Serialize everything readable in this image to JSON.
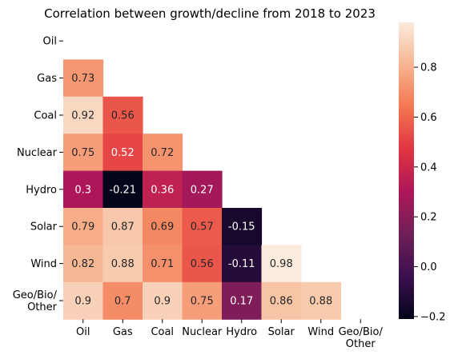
{
  "chart_data": {
    "type": "heatmap",
    "title": "Correlation between growth/decline from 2018 to 2023",
    "xlabel": "",
    "ylabel": "",
    "categories": [
      "Oil",
      "Gas",
      "Coal",
      "Nuclear",
      "Hydro",
      "Solar",
      "Wind",
      "Geo/Bio/\nOther"
    ],
    "mask": "upper-triangle-and-diagonal",
    "values": [
      [
        null,
        null,
        null,
        null,
        null,
        null,
        null,
        null
      ],
      [
        0.73,
        null,
        null,
        null,
        null,
        null,
        null,
        null
      ],
      [
        0.92,
        0.56,
        null,
        null,
        null,
        null,
        null,
        null
      ],
      [
        0.75,
        0.52,
        0.72,
        null,
        null,
        null,
        null,
        null
      ],
      [
        0.3,
        -0.21,
        0.36,
        0.27,
        null,
        null,
        null,
        null
      ],
      [
        0.79,
        0.87,
        0.69,
        0.57,
        -0.15,
        null,
        null,
        null
      ],
      [
        0.82,
        0.88,
        0.71,
        0.56,
        -0.11,
        0.98,
        null,
        null
      ],
      [
        0.9,
        0.7,
        0.9,
        0.75,
        0.17,
        0.86,
        0.88,
        null
      ]
    ],
    "value_labels": [
      [],
      [
        "0.73"
      ],
      [
        "0.92",
        "0.56"
      ],
      [
        "0.75",
        "0.52",
        "0.72"
      ],
      [
        "0.3",
        "-0.21",
        "0.36",
        "0.27"
      ],
      [
        "0.79",
        "0.87",
        "0.69",
        "0.57",
        "-0.15"
      ],
      [
        "0.82",
        "0.88",
        "0.71",
        "0.56",
        "-0.11",
        "0.98"
      ],
      [
        "0.9",
        "0.7",
        "0.9",
        "0.75",
        "0.17",
        "0.86",
        "0.88"
      ]
    ],
    "colorbar": {
      "vmin": -0.21,
      "vmax": 0.98,
      "ticks": [
        -0.2,
        0.0,
        0.2,
        0.4,
        0.6,
        0.8
      ],
      "tick_labels": [
        "−0.2",
        "0.0",
        "0.2",
        "0.4",
        "0.6",
        "0.8"
      ]
    },
    "colormap": "rocket",
    "colormap_stops": [
      "#03051a",
      "#3b0f4f",
      "#701f57",
      "#ad1759",
      "#e13342",
      "#f37651",
      "#f6b48f",
      "#faebdd"
    ]
  }
}
